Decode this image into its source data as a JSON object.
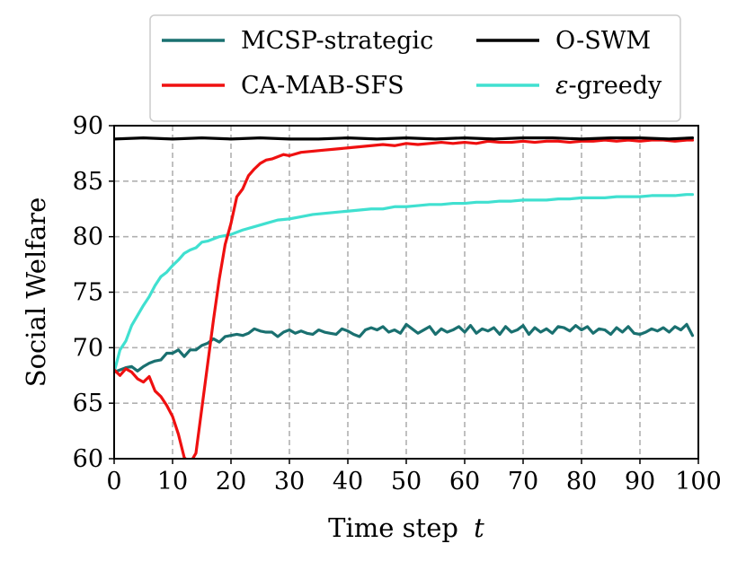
{
  "chart_data": {
    "type": "line",
    "xlabel": "Time step",
    "xlabel_var": "t",
    "ylabel": "Social Welfare",
    "xlim": [
      0,
      100
    ],
    "ylim": [
      60,
      90
    ],
    "xticks": [
      0,
      10,
      20,
      30,
      40,
      50,
      60,
      70,
      80,
      90,
      100
    ],
    "yticks": [
      60,
      65,
      70,
      75,
      80,
      85,
      90
    ],
    "grid": true,
    "legend": {
      "position": "top",
      "columns": 2
    },
    "series": [
      {
        "name": "MCSP-strategic",
        "color": "#1a7070",
        "x": [
          0,
          1,
          2,
          3,
          4,
          5,
          6,
          7,
          8,
          9,
          10,
          11,
          12,
          13,
          14,
          15,
          16,
          17,
          18,
          19,
          20,
          21,
          22,
          23,
          24,
          25,
          26,
          27,
          28,
          29,
          30,
          31,
          32,
          33,
          34,
          35,
          36,
          37,
          38,
          39,
          40,
          41,
          42,
          43,
          44,
          45,
          46,
          47,
          48,
          49,
          50,
          51,
          52,
          53,
          54,
          55,
          56,
          57,
          58,
          59,
          60,
          61,
          62,
          63,
          64,
          65,
          66,
          67,
          68,
          69,
          70,
          71,
          72,
          73,
          74,
          75,
          76,
          77,
          78,
          79,
          80,
          81,
          82,
          83,
          84,
          85,
          86,
          87,
          88,
          89,
          90,
          91,
          92,
          93,
          94,
          95,
          96,
          97,
          98,
          99
        ],
        "values": [
          67.8,
          68.0,
          68.2,
          68.3,
          67.9,
          68.3,
          68.6,
          68.8,
          68.9,
          69.5,
          69.5,
          69.8,
          69.2,
          69.8,
          69.8,
          70.2,
          70.4,
          70.8,
          70.5,
          71.0,
          71.1,
          71.2,
          71.1,
          71.3,
          71.7,
          71.5,
          71.4,
          71.4,
          71.0,
          71.4,
          71.6,
          71.3,
          71.5,
          71.3,
          71.2,
          71.6,
          71.4,
          71.3,
          71.2,
          71.7,
          71.5,
          71.2,
          71.0,
          71.6,
          71.8,
          71.6,
          71.9,
          71.4,
          71.6,
          71.3,
          72.1,
          71.7,
          71.3,
          71.6,
          71.9,
          71.2,
          71.7,
          71.4,
          71.6,
          71.9,
          71.4,
          72.0,
          71.3,
          71.7,
          71.5,
          71.8,
          71.2,
          71.9,
          71.4,
          71.6,
          72.0,
          71.2,
          71.8,
          71.4,
          71.7,
          71.3,
          71.9,
          71.8,
          71.5,
          72.0,
          71.6,
          71.9,
          71.3,
          71.7,
          71.6,
          71.2,
          71.8,
          71.4,
          71.9,
          71.3,
          71.2,
          71.4,
          71.7,
          71.5,
          71.8,
          71.4,
          71.9,
          71.6,
          72.1,
          71.1
        ]
      },
      {
        "name": "CA-MAB-SFS",
        "color": "#ef1010",
        "x": [
          0,
          1,
          2,
          3,
          4,
          5,
          6,
          7,
          8,
          9,
          10,
          11,
          12,
          13,
          14,
          15,
          16,
          17,
          18,
          19,
          20,
          21,
          22,
          23,
          24,
          25,
          26,
          27,
          28,
          29,
          30,
          32,
          34,
          36,
          38,
          40,
          42,
          44,
          46,
          48,
          50,
          52,
          54,
          56,
          58,
          60,
          62,
          64,
          66,
          68,
          70,
          72,
          74,
          76,
          78,
          80,
          82,
          84,
          86,
          88,
          90,
          92,
          94,
          96,
          98,
          99
        ],
        "values": [
          68.0,
          67.5,
          68.1,
          67.8,
          67.2,
          66.9,
          67.4,
          66.1,
          65.6,
          64.8,
          63.8,
          62.2,
          60.1,
          59.6,
          60.5,
          64.5,
          68.5,
          72.5,
          76.2,
          79.3,
          81.2,
          83.6,
          84.3,
          85.5,
          86.1,
          86.6,
          86.9,
          87.0,
          87.2,
          87.4,
          87.3,
          87.6,
          87.7,
          87.8,
          87.9,
          88.0,
          88.1,
          88.2,
          88.3,
          88.2,
          88.4,
          88.3,
          88.4,
          88.5,
          88.4,
          88.5,
          88.4,
          88.6,
          88.5,
          88.5,
          88.6,
          88.5,
          88.6,
          88.6,
          88.5,
          88.6,
          88.6,
          88.7,
          88.6,
          88.7,
          88.6,
          88.7,
          88.7,
          88.6,
          88.7,
          88.7
        ]
      },
      {
        "name": "O-SWM",
        "color": "#000000",
        "x": [
          0,
          5,
          10,
          15,
          20,
          25,
          30,
          35,
          40,
          45,
          50,
          55,
          60,
          65,
          70,
          75,
          80,
          85,
          90,
          95,
          99
        ],
        "values": [
          88.8,
          88.9,
          88.8,
          88.9,
          88.8,
          88.9,
          88.8,
          88.8,
          88.9,
          88.8,
          88.9,
          88.8,
          88.9,
          88.8,
          88.9,
          88.9,
          88.8,
          88.9,
          88.9,
          88.8,
          88.9
        ]
      },
      {
        "name": "ε-greedy",
        "legend_prefix": "ε",
        "legend_suffix": "-greedy",
        "color": "#40e0d0",
        "x": [
          0,
          1,
          2,
          3,
          4,
          5,
          6,
          7,
          8,
          9,
          10,
          11,
          12,
          13,
          14,
          15,
          16,
          17,
          18,
          19,
          20,
          22,
          24,
          26,
          28,
          30,
          32,
          34,
          36,
          38,
          40,
          42,
          44,
          46,
          48,
          50,
          52,
          54,
          56,
          58,
          60,
          62,
          64,
          66,
          68,
          70,
          72,
          74,
          76,
          78,
          80,
          82,
          84,
          86,
          88,
          90,
          92,
          94,
          96,
          98,
          99
        ],
        "values": [
          67.8,
          69.8,
          70.6,
          72.0,
          72.9,
          73.8,
          74.6,
          75.6,
          76.4,
          76.8,
          77.4,
          77.9,
          78.5,
          78.8,
          79.0,
          79.5,
          79.6,
          79.8,
          80.0,
          80.1,
          80.2,
          80.6,
          80.9,
          81.2,
          81.5,
          81.6,
          81.8,
          82.0,
          82.1,
          82.2,
          82.3,
          82.4,
          82.5,
          82.5,
          82.7,
          82.7,
          82.8,
          82.9,
          82.9,
          83.0,
          83.0,
          83.1,
          83.1,
          83.2,
          83.2,
          83.3,
          83.3,
          83.3,
          83.4,
          83.4,
          83.5,
          83.5,
          83.5,
          83.6,
          83.6,
          83.6,
          83.7,
          83.7,
          83.7,
          83.8,
          83.8
        ]
      }
    ]
  }
}
